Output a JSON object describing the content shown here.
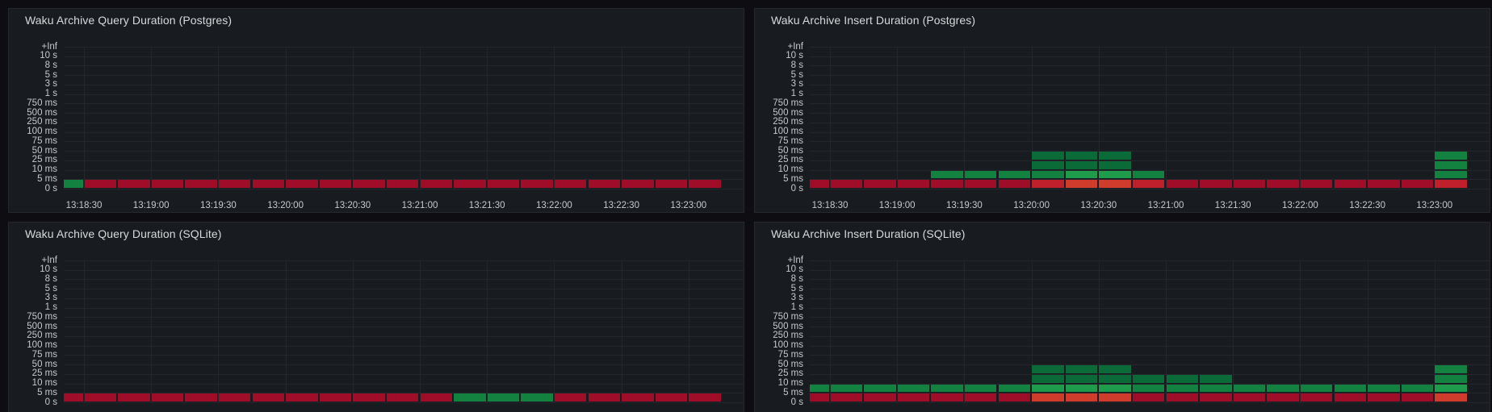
{
  "palette": {
    "red1": "#a00d28",
    "red2": "#c01f2c",
    "red3": "#d03c2b",
    "green1": "#0a6b38",
    "green2": "#13813f",
    "green3": "#1f9b4c"
  },
  "colors": {
    "page_bg": "#0e0d12",
    "panel_bg": "#181b1f",
    "panel_border": "#26282e",
    "title_text": "#d8d9da",
    "axis_text": "#c8c9cc",
    "gridline": "#24262c"
  },
  "chart_data": [
    {
      "type": "heatmap",
      "title": "Waku Archive Query Duration (Postgres)",
      "y_buckets": [
        "+Inf",
        "10 s",
        "8 s",
        "5 s",
        "3 s",
        "1 s",
        "750 ms",
        "500 ms",
        "250 ms",
        "100 ms",
        "75 ms",
        "50 ms",
        "25 ms",
        "10 ms",
        "5 ms",
        "0 s"
      ],
      "x_ticks": [
        "13:18:30",
        "13:19:00",
        "13:19:30",
        "13:20:00",
        "13:20:30",
        "13:21:00",
        "13:21:30",
        "13:22:00",
        "13:22:30",
        "13:23:00"
      ],
      "step_seconds": 15,
      "num_columns": 20,
      "first_column_clipped": true,
      "row_buckets_from_bottom": [
        "0 s-5 ms",
        "5 ms-10 ms",
        "10 ms-25 ms",
        "25 ms-50 ms"
      ],
      "rows": [
        {
          "row": 0,
          "bucket": "0 s-5 ms",
          "runs": [
            [
              0,
              0,
              "green2"
            ],
            [
              1,
              19,
              "red1"
            ]
          ]
        }
      ]
    },
    {
      "type": "heatmap",
      "title": "Waku Archive Insert Duration (Postgres)",
      "y_buckets": [
        "+Inf",
        "10 s",
        "8 s",
        "5 s",
        "3 s",
        "1 s",
        "750 ms",
        "500 ms",
        "250 ms",
        "100 ms",
        "75 ms",
        "50 ms",
        "25 ms",
        "10 ms",
        "5 ms",
        "0 s"
      ],
      "x_ticks": [
        "13:18:30",
        "13:19:00",
        "13:19:30",
        "13:20:00",
        "13:20:30",
        "13:21:00",
        "13:21:30",
        "13:22:00",
        "13:22:30",
        "13:23:00"
      ],
      "step_seconds": 15,
      "num_columns": 20,
      "first_column_clipped": true,
      "row_buckets_from_bottom": [
        "0 s-5 ms",
        "5 ms-10 ms",
        "10 ms-25 ms",
        "25 ms-50 ms"
      ],
      "rows": [
        {
          "row": 0,
          "bucket": "0 s-5 ms",
          "runs": [
            [
              0,
              6,
              "red1"
            ],
            [
              7,
              7,
              "red2"
            ],
            [
              8,
              9,
              "red3"
            ],
            [
              10,
              10,
              "red2"
            ],
            [
              11,
              18,
              "red1"
            ],
            [
              19,
              19,
              "red2"
            ]
          ]
        },
        {
          "row": 1,
          "bucket": "5 ms-10 ms",
          "runs": [
            [
              4,
              7,
              "green2"
            ],
            [
              8,
              9,
              "green3"
            ],
            [
              10,
              10,
              "green2"
            ],
            [
              19,
              19,
              "green2"
            ]
          ]
        },
        {
          "row": 2,
          "bucket": "10 ms-25 ms",
          "runs": [
            [
              7,
              9,
              "green1"
            ],
            [
              19,
              19,
              "green2"
            ]
          ]
        },
        {
          "row": 3,
          "bucket": "25 ms-50 ms",
          "runs": [
            [
              7,
              9,
              "green1"
            ],
            [
              19,
              19,
              "green2"
            ]
          ]
        }
      ]
    },
    {
      "type": "heatmap",
      "title": "Waku Archive Query Duration (SQLite)",
      "y_buckets": [
        "+Inf",
        "10 s",
        "8 s",
        "5 s",
        "3 s",
        "1 s",
        "750 ms",
        "500 ms",
        "250 ms",
        "100 ms",
        "75 ms",
        "50 ms",
        "25 ms",
        "10 ms",
        "5 ms",
        "0 s"
      ],
      "x_ticks": [
        "13:18:30",
        "13:19:00",
        "13:19:30",
        "13:20:00",
        "13:20:30",
        "13:21:00",
        "13:21:30",
        "13:22:00",
        "13:22:30",
        "13:23:00"
      ],
      "step_seconds": 15,
      "num_columns": 20,
      "first_column_clipped": true,
      "row_buckets_from_bottom": [
        "0 s-5 ms",
        "5 ms-10 ms",
        "10 ms-25 ms",
        "25 ms-50 ms"
      ],
      "rows": [
        {
          "row": 0,
          "bucket": "0 s-5 ms",
          "runs": [
            [
              0,
              11,
              "red1"
            ],
            [
              12,
              14,
              "green2"
            ],
            [
              15,
              19,
              "red1"
            ]
          ]
        }
      ]
    },
    {
      "type": "heatmap",
      "title": "Waku Archive Insert Duration (SQLite)",
      "y_buckets": [
        "+Inf",
        "10 s",
        "8 s",
        "5 s",
        "3 s",
        "1 s",
        "750 ms",
        "500 ms",
        "250 ms",
        "100 ms",
        "75 ms",
        "50 ms",
        "25 ms",
        "10 ms",
        "5 ms",
        "0 s"
      ],
      "x_ticks": [
        "13:18:30",
        "13:19:00",
        "13:19:30",
        "13:20:00",
        "13:20:30",
        "13:21:00",
        "13:21:30",
        "13:22:00",
        "13:22:30",
        "13:23:00"
      ],
      "step_seconds": 15,
      "num_columns": 20,
      "first_column_clipped": true,
      "row_buckets_from_bottom": [
        "0 s-5 ms",
        "5 ms-10 ms",
        "10 ms-25 ms",
        "25 ms-50 ms"
      ],
      "rows": [
        {
          "row": 0,
          "bucket": "0 s-5 ms",
          "runs": [
            [
              0,
              6,
              "red1"
            ],
            [
              7,
              9,
              "red3"
            ],
            [
              10,
              18,
              "red1"
            ],
            [
              19,
              19,
              "red3"
            ]
          ]
        },
        {
          "row": 1,
          "bucket": "5 ms-10 ms",
          "runs": [
            [
              0,
              6,
              "green2"
            ],
            [
              7,
              9,
              "green3"
            ],
            [
              10,
              18,
              "green2"
            ],
            [
              19,
              19,
              "green3"
            ]
          ]
        },
        {
          "row": 2,
          "bucket": "10 ms-25 ms",
          "runs": [
            [
              7,
              12,
              "green1"
            ],
            [
              19,
              19,
              "green2"
            ]
          ]
        },
        {
          "row": 3,
          "bucket": "25 ms-50 ms",
          "runs": [
            [
              7,
              9,
              "green1"
            ],
            [
              19,
              19,
              "green2"
            ]
          ]
        }
      ]
    }
  ]
}
